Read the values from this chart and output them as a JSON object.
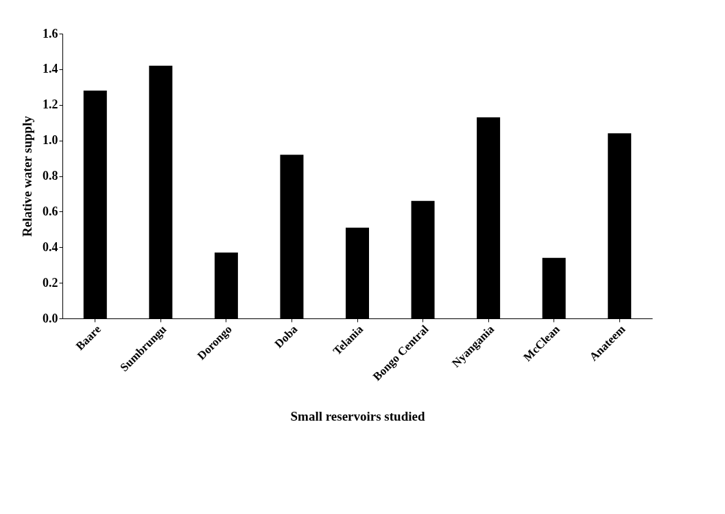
{
  "chart_data": {
    "type": "bar",
    "xlabel": "Small reservoirs studied",
    "ylabel": "Relative water supply",
    "categories": [
      "Baare",
      "Sumbrungu",
      "Dorongo",
      "Doba",
      "Telania",
      "Bongo Central",
      "Nyangania",
      "McClean",
      "Anateem"
    ],
    "values": [
      1.28,
      1.42,
      0.37,
      0.92,
      0.51,
      0.66,
      1.13,
      0.34,
      1.04
    ],
    "color": "#000000",
    "ylim": [
      0,
      1.6
    ],
    "yticks": [
      {
        "value": 0,
        "label": "0.0"
      },
      0.2,
      0.4,
      0.6,
      0.8,
      {
        "value": 1,
        "label": "1.0"
      },
      1.2,
      1.4,
      1.6
    ],
    "grid": false
  }
}
